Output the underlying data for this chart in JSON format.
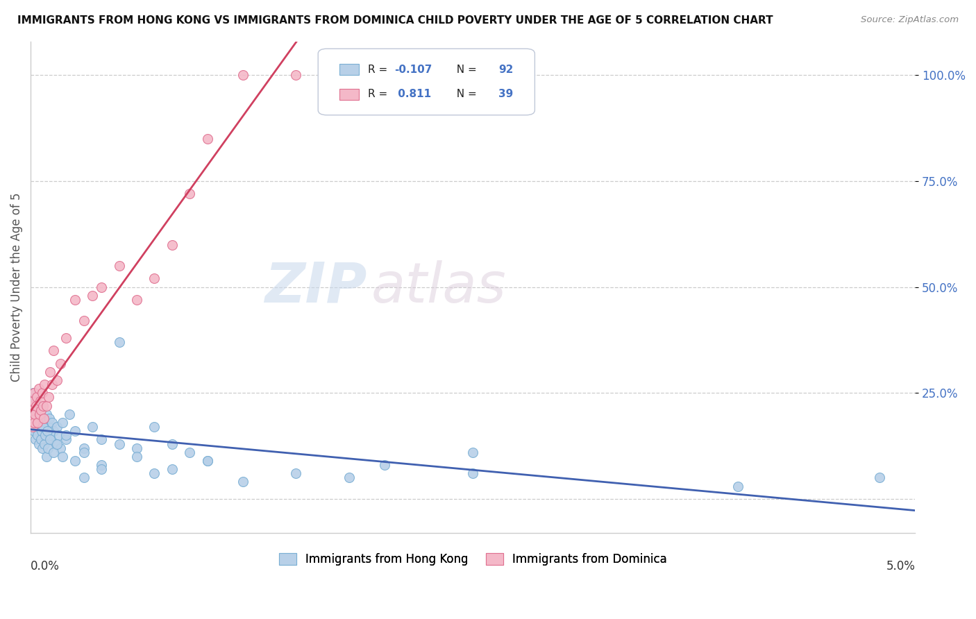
{
  "title": "IMMIGRANTS FROM HONG KONG VS IMMIGRANTS FROM DOMINICA CHILD POVERTY UNDER THE AGE OF 5 CORRELATION CHART",
  "source": "Source: ZipAtlas.com",
  "ylabel": "Child Poverty Under the Age of 5",
  "hk_color": "#b8d0e8",
  "hk_edge_color": "#7aafd4",
  "dom_color": "#f4b8c8",
  "dom_edge_color": "#e07090",
  "hk_line_color": "#4060b0",
  "dom_line_color": "#d04060",
  "hk_R": -0.107,
  "hk_N": 92,
  "dom_R": 0.811,
  "dom_N": 39,
  "legend_label_hk": "Immigrants from Hong Kong",
  "legend_label_dom": "Immigrants from Dominica",
  "watermark_1": "ZIP",
  "watermark_2": "atlas",
  "background_color": "#ffffff",
  "label_color": "#4472c4",
  "text_color": "#333333",
  "grid_color": "#cccccc",
  "hk_x": [
    5e-05,
    0.0001,
    0.00012,
    0.00015,
    0.0002,
    0.00022,
    0.00025,
    0.00028,
    0.0003,
    0.00032,
    0.00035,
    0.00038,
    0.0004,
    0.00042,
    0.00045,
    0.00048,
    0.0005,
    0.00052,
    0.00055,
    0.00058,
    0.0006,
    0.00065,
    0.0007,
    0.00075,
    0.0008,
    0.00085,
    0.0009,
    0.00095,
    0.001,
    0.00105,
    0.0011,
    0.0012,
    0.0013,
    0.0014,
    0.0015,
    0.0016,
    0.0017,
    0.0018,
    0.002,
    0.0022,
    0.0025,
    0.003,
    0.0035,
    0.004,
    0.005,
    0.006,
    0.007,
    0.008,
    0.009,
    0.01,
    8e-05,
    0.00012,
    0.00018,
    0.00022,
    0.00028,
    0.00032,
    0.00038,
    0.00042,
    0.00048,
    0.00052,
    0.00058,
    0.00062,
    0.00068,
    0.00072,
    0.00078,
    0.00082,
    0.00088,
    0.00092,
    0.00098,
    0.0011,
    0.0013,
    0.0015,
    0.0018,
    0.002,
    0.0025,
    0.003,
    0.004,
    0.005,
    0.006,
    0.008,
    0.01,
    0.015,
    0.02,
    0.025,
    0.003,
    0.004,
    0.007,
    0.012,
    0.018,
    0.025,
    0.04,
    0.048
  ],
  "hk_y": [
    0.2,
    0.22,
    0.18,
    0.25,
    0.19,
    0.21,
    0.16,
    0.23,
    0.2,
    0.18,
    0.22,
    0.17,
    0.2,
    0.15,
    0.18,
    0.21,
    0.19,
    0.16,
    0.22,
    0.18,
    0.2,
    0.17,
    0.19,
    0.15,
    0.18,
    0.16,
    0.2,
    0.14,
    0.17,
    0.19,
    0.15,
    0.18,
    0.16,
    0.13,
    0.17,
    0.15,
    0.12,
    0.18,
    0.14,
    0.2,
    0.16,
    0.12,
    0.17,
    0.14,
    0.37,
    0.12,
    0.17,
    0.13,
    0.11,
    0.09,
    0.17,
    0.19,
    0.16,
    0.18,
    0.14,
    0.2,
    0.15,
    0.17,
    0.13,
    0.19,
    0.14,
    0.16,
    0.12,
    0.17,
    0.13,
    0.15,
    0.1,
    0.16,
    0.12,
    0.14,
    0.11,
    0.13,
    0.1,
    0.15,
    0.09,
    0.11,
    0.08,
    0.13,
    0.1,
    0.07,
    0.09,
    0.06,
    0.08,
    0.11,
    0.05,
    0.07,
    0.06,
    0.04,
    0.05,
    0.06,
    0.03,
    0.05
  ],
  "dom_x": [
    5e-05,
    8e-05,
    0.0001,
    0.00012,
    0.00015,
    0.00018,
    0.0002,
    0.00025,
    0.0003,
    0.00035,
    0.0004,
    0.00045,
    0.0005,
    0.00055,
    0.0006,
    0.00065,
    0.0007,
    0.00075,
    0.0008,
    0.0009,
    0.001,
    0.0011,
    0.0012,
    0.0013,
    0.0015,
    0.0017,
    0.002,
    0.0025,
    0.003,
    0.0035,
    0.004,
    0.005,
    0.006,
    0.007,
    0.008,
    0.009,
    0.01,
    0.012,
    0.015
  ],
  "dom_y": [
    0.22,
    0.19,
    0.21,
    0.17,
    0.23,
    0.18,
    0.25,
    0.2,
    0.22,
    0.24,
    0.18,
    0.26,
    0.2,
    0.23,
    0.21,
    0.25,
    0.22,
    0.19,
    0.27,
    0.22,
    0.24,
    0.3,
    0.27,
    0.35,
    0.28,
    0.32,
    0.38,
    0.47,
    0.42,
    0.48,
    0.5,
    0.55,
    0.47,
    0.52,
    0.6,
    0.72,
    0.85,
    1.0,
    1.0
  ],
  "xlim": [
    0.0,
    0.05
  ],
  "ylim": [
    -0.08,
    1.08
  ]
}
